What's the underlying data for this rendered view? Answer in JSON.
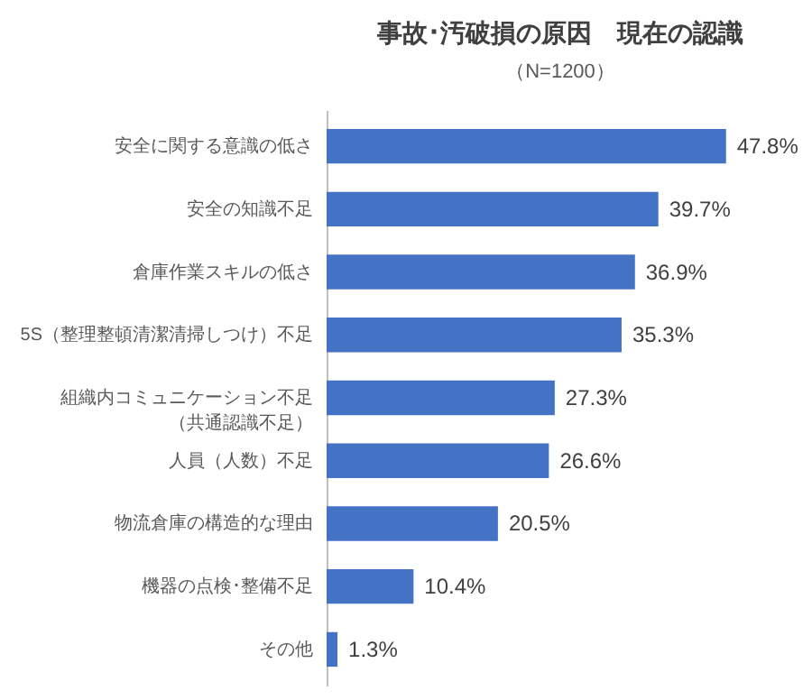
{
  "chart_data": {
    "type": "bar",
    "orientation": "horizontal",
    "title": "事故･汚破損の原因　現在の認識",
    "subtitle": "（N=1200）",
    "categories": [
      "安全に関する意識の低さ",
      "安全の知識不足",
      "倉庫作業スキルの低さ",
      "5S（整理整頓清潔清掃しつけ）不足",
      "組織内コミュニケーション不足（共通認識不足）",
      "人員（人数）不足",
      "物流倉庫の構造的な理由",
      "機器の点検･整備不足",
      "その他"
    ],
    "values": [
      47.8,
      39.7,
      36.9,
      35.3,
      27.3,
      26.6,
      20.5,
      10.4,
      1.3
    ],
    "value_labels": [
      "47.8%",
      "39.7%",
      "36.9%",
      "35.3%",
      "27.3%",
      "26.6%",
      "20.5%",
      "10.4%",
      "1.3%"
    ],
    "color": "#4472c4"
  }
}
